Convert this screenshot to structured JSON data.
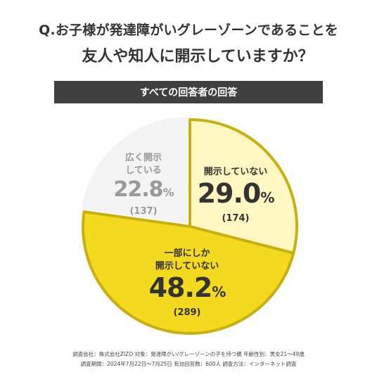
{
  "question_line1": "Q.お子様が発達障がいグレーゾーンであることを",
  "question_line2": "友人や知人に開示していますか？",
  "banner": "すべての回答者の回答",
  "chart_data": {
    "type": "pie",
    "slices": [
      {
        "label_lines": [
          "開示していない"
        ],
        "value": 29.0,
        "pct_text": "29.0",
        "count": "(174)",
        "color": "#FFF7C2",
        "text_color": "#333333"
      },
      {
        "label_lines": [
          "一部にしか",
          "開示していない"
        ],
        "value": 48.2,
        "pct_text": "48.2",
        "count": "(289)",
        "color": "#F4DA1F",
        "text_color": "#333333"
      },
      {
        "label_lines": [
          "広く開示",
          "している"
        ],
        "value": 22.8,
        "pct_text": "22.8",
        "count": "(137)",
        "color": "#F3F3F3",
        "text_color": "#999999"
      }
    ],
    "percent_sign": "%",
    "start_angle_deg": 0,
    "border_color": "#C7B00F",
    "exploded_slice": 2
  },
  "footer": {
    "line1": "調査会社：株式会社ZIZO 対象：発達障がい/グレーゾーンの子を持つ親 年齢性別：男女21〜49歳",
    "line2": "調査期間：2024年7月22日〜7月25日 有効回答数：600人 調査方法：インターネット調査"
  }
}
